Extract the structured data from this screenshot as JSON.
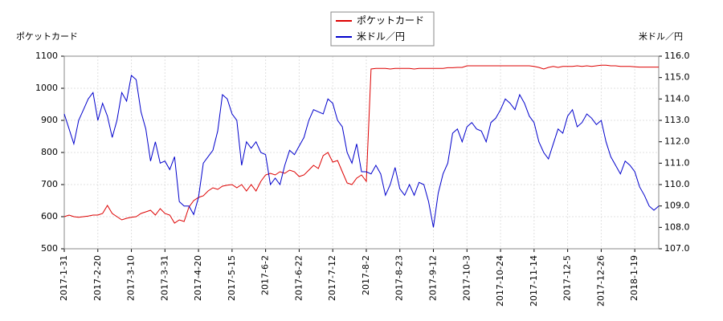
{
  "chart_data": {
    "type": "line",
    "y_label": "ポケットカード",
    "y2_label": "米ドル／円",
    "legend": "top",
    "grid": true,
    "categories": [
      "2017-1-31",
      null,
      null,
      null,
      null,
      null,
      null,
      "2017-2-20",
      null,
      null,
      null,
      null,
      null,
      null,
      "2017-3-10",
      null,
      null,
      null,
      null,
      null,
      null,
      "2017-3-31",
      null,
      null,
      null,
      null,
      null,
      null,
      "2017-4-20",
      null,
      null,
      null,
      null,
      null,
      null,
      "2017-5-15",
      null,
      null,
      null,
      null,
      null,
      null,
      "2017-6-2",
      null,
      null,
      null,
      null,
      null,
      null,
      "2017-6-22",
      null,
      null,
      null,
      null,
      null,
      null,
      "2017-7-12",
      null,
      null,
      null,
      null,
      null,
      null,
      "2017-8-2",
      null,
      null,
      null,
      null,
      null,
      null,
      "2017-8-23",
      null,
      null,
      null,
      null,
      null,
      null,
      "2017-9-12",
      null,
      null,
      null,
      null,
      null,
      null,
      "2017-10-3",
      null,
      null,
      null,
      null,
      null,
      null,
      "2017-10-24",
      null,
      null,
      null,
      null,
      null,
      null,
      "2017-11-14",
      null,
      null,
      null,
      null,
      null,
      null,
      "2017-12-5",
      null,
      null,
      null,
      null,
      null,
      null,
      "2017-12-26",
      null,
      null,
      null,
      null,
      null,
      null,
      "2018-1-19",
      null,
      null,
      null,
      null,
      null
    ],
    "ylim": [
      500,
      1100
    ],
    "yticks": [
      500,
      600,
      700,
      800,
      900,
      1000,
      1100
    ],
    "y2lim": [
      107,
      116
    ],
    "y2ticks": [
      {
        "value": 107,
        "label": "107.0"
      },
      {
        "value": 108,
        "label": "108.0"
      },
      {
        "value": 109,
        "label": "109.0"
      },
      {
        "value": 110,
        "label": "110.0"
      },
      {
        "value": 111,
        "label": "111.0"
      },
      {
        "value": 112,
        "label": "112.0"
      },
      {
        "value": 113,
        "label": "113.0"
      },
      {
        "value": 114,
        "label": "114.0"
      },
      {
        "value": 115,
        "label": "115.0"
      },
      {
        "value": 116,
        "label": "116.0"
      }
    ],
    "series": [
      {
        "name": "ポケットカード",
        "color": "#dd0000",
        "values": [
          600,
          605,
          600,
          598,
          600,
          602,
          605,
          605,
          610,
          635,
          610,
          600,
          590,
          595,
          598,
          600,
          610,
          615,
          620,
          605,
          625,
          610,
          605,
          580,
          590,
          585,
          630,
          650,
          660,
          665,
          680,
          690,
          685,
          695,
          698,
          700,
          690,
          700,
          680,
          700,
          680,
          710,
          730,
          735,
          730,
          740,
          735,
          745,
          740,
          725,
          730,
          745,
          760,
          750,
          790,
          800,
          770,
          775,
          740,
          705,
          700,
          720,
          730,
          710,
          1060,
          1062,
          1062,
          1062,
          1060,
          1062,
          1062,
          1062,
          1062,
          1060,
          1062,
          1062,
          1062,
          1062,
          1062,
          1062,
          1064,
          1064,
          1065,
          1065,
          1070,
          1070,
          1070,
          1070,
          1070,
          1070,
          1070,
          1070,
          1070,
          1070,
          1070,
          1070,
          1070,
          1070,
          1068,
          1065,
          1060,
          1065,
          1068,
          1065,
          1068,
          1068,
          1068,
          1070,
          1068,
          1070,
          1068,
          1070,
          1072,
          1072,
          1070,
          1070,
          1068,
          1068,
          1068,
          1067,
          1066,
          1066,
          1066,
          1066,
          1066
        ]
      },
      {
        "name": "米ドル／円",
        "color": "#0000cc",
        "axis": "y2",
        "values": [
          113.3,
          112.6,
          111.9,
          113.0,
          113.5,
          114.0,
          114.3,
          113.0,
          113.8,
          113.2,
          112.2,
          113.0,
          114.3,
          113.9,
          115.1,
          114.9,
          113.4,
          112.6,
          111.1,
          112.0,
          111.0,
          111.1,
          110.7,
          111.3,
          109.2,
          109.0,
          109.0,
          108.6,
          109.4,
          111.0,
          111.3,
          111.6,
          112.5,
          114.2,
          114.0,
          113.3,
          113.0,
          110.9,
          112.0,
          111.7,
          112.0,
          111.5,
          111.4,
          110.0,
          110.3,
          110.0,
          110.9,
          111.6,
          111.4,
          111.8,
          112.2,
          113.0,
          113.5,
          113.4,
          113.3,
          114.0,
          113.8,
          113.0,
          112.7,
          111.5,
          111.0,
          111.9,
          110.6,
          110.6,
          110.5,
          110.9,
          110.5,
          109.5,
          110.0,
          110.8,
          109.8,
          109.5,
          110.0,
          109.5,
          110.1,
          110.0,
          109.2,
          108.0,
          109.6,
          110.5,
          111.0,
          112.4,
          112.6,
          112.0,
          112.7,
          112.9,
          112.6,
          112.5,
          112.0,
          112.9,
          113.1,
          113.5,
          114.0,
          113.8,
          113.5,
          114.2,
          113.8,
          113.2,
          112.9,
          112.0,
          111.5,
          111.2,
          111.9,
          112.6,
          112.4,
          113.2,
          113.5,
          112.7,
          112.9,
          113.3,
          113.1,
          112.8,
          113.0,
          112.0,
          111.3,
          110.9,
          110.5,
          111.1,
          110.9,
          110.6,
          109.9,
          109.5,
          109.0,
          108.8,
          109.0
        ]
      }
    ]
  }
}
